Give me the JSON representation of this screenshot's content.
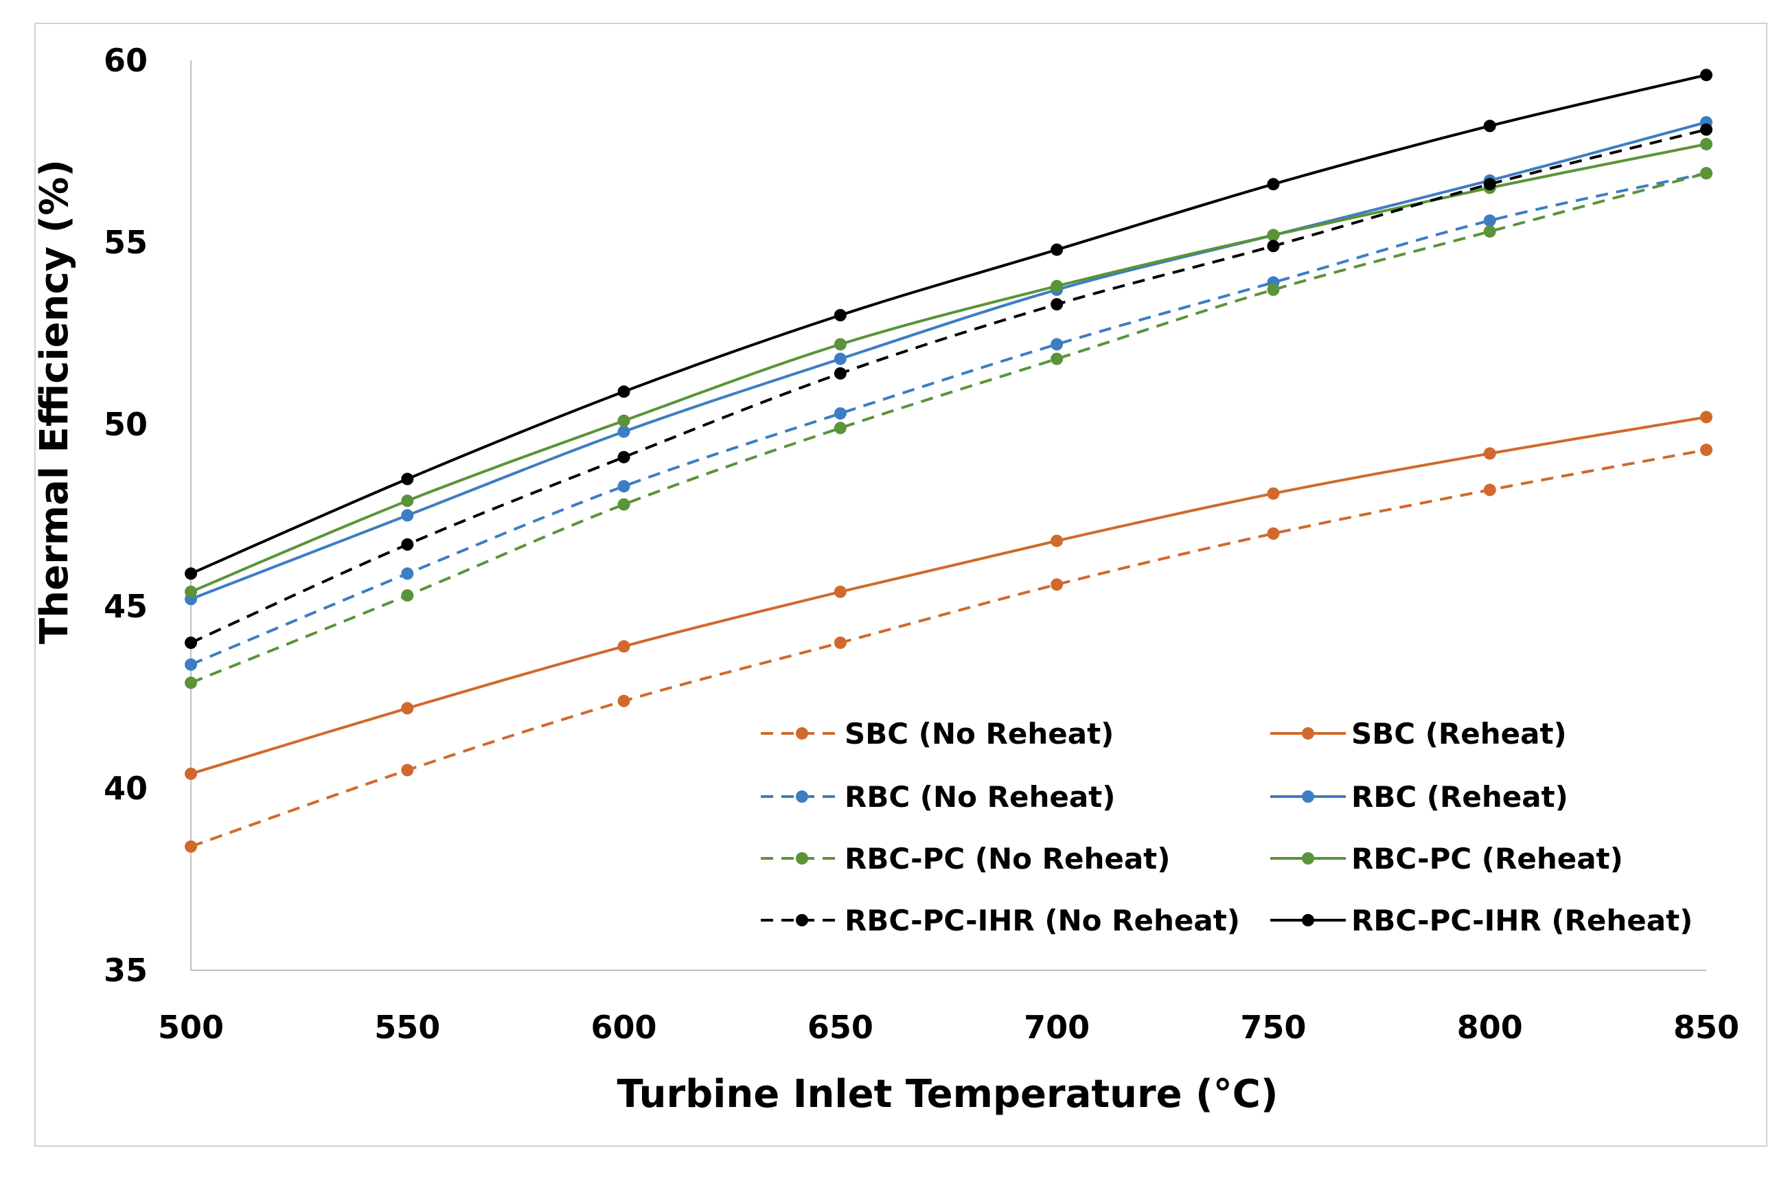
{
  "chart_data": {
    "type": "line",
    "title": "",
    "xlabel": "Turbine Inlet Temperature (°C)",
    "ylabel": "Thermal Efficiency (%)",
    "xlim": [
      500,
      850
    ],
    "ylim": [
      35,
      60
    ],
    "x": [
      500,
      550,
      600,
      650,
      700,
      750,
      800,
      850
    ],
    "x_ticks": [
      "500",
      "550",
      "600",
      "650",
      "700",
      "750",
      "800",
      "850"
    ],
    "y_ticks": [
      "35",
      "40",
      "45",
      "50",
      "55",
      "60"
    ],
    "grid": false,
    "legend_position": "lower-right inside plot",
    "series": [
      {
        "name": "SBC (No Reheat)",
        "color": "#d0692b",
        "dash": true,
        "values": [
          38.4,
          40.5,
          42.4,
          44.0,
          45.6,
          47.0,
          48.2,
          49.3
        ]
      },
      {
        "name": "SBC (Reheat)",
        "color": "#d0692b",
        "dash": false,
        "values": [
          40.4,
          42.2,
          43.9,
          45.4,
          46.8,
          48.1,
          49.2,
          50.2
        ]
      },
      {
        "name": "RBC (No Reheat)",
        "color": "#3c7dc4",
        "dash": true,
        "values": [
          43.4,
          45.9,
          48.3,
          50.3,
          52.2,
          53.9,
          55.6,
          56.9
        ]
      },
      {
        "name": "RBC (Reheat)",
        "color": "#3c7dc4",
        "dash": false,
        "values": [
          45.2,
          47.5,
          49.8,
          51.8,
          53.7,
          55.2,
          56.7,
          58.3
        ]
      },
      {
        "name": "RBC-PC (No Reheat)",
        "color": "#5a9338",
        "dash": true,
        "values": [
          42.9,
          45.3,
          47.8,
          49.9,
          51.8,
          53.7,
          55.3,
          56.9
        ]
      },
      {
        "name": "RBC-PC (Reheat)",
        "color": "#5a9338",
        "dash": false,
        "values": [
          45.4,
          47.9,
          50.1,
          52.2,
          53.8,
          55.2,
          56.5,
          57.7
        ]
      },
      {
        "name": "RBC-PC-IHR (No Reheat)",
        "color": "#000000",
        "dash": true,
        "values": [
          44.0,
          46.7,
          49.1,
          51.4,
          53.3,
          54.9,
          56.6,
          58.1
        ]
      },
      {
        "name": "RBC-PC-IHR (Reheat)",
        "color": "#000000",
        "dash": false,
        "values": [
          45.9,
          48.5,
          50.9,
          53.0,
          54.8,
          56.6,
          58.2,
          59.6
        ]
      }
    ]
  }
}
